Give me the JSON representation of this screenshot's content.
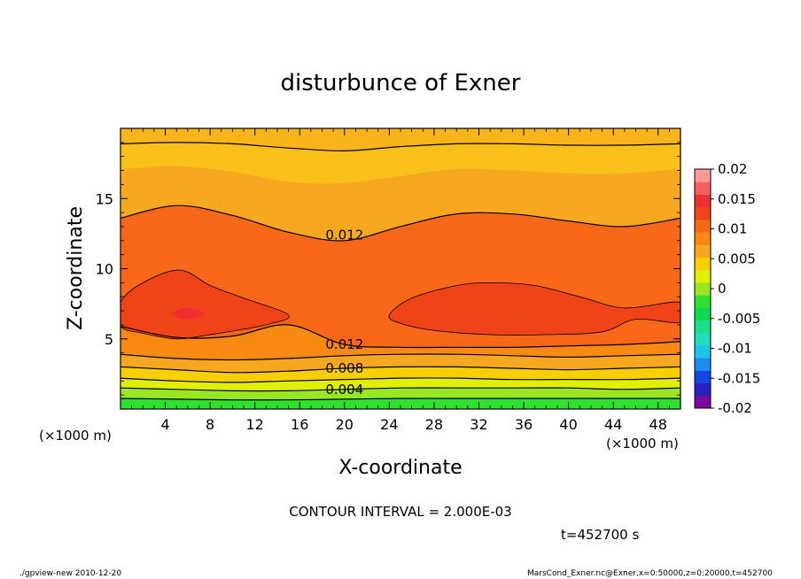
{
  "chart_data": {
    "type": "contour",
    "title": "disturbunce of Exner",
    "xlabel": "X-coordinate",
    "ylabel": "Z-coordinate",
    "x_unit": "(×1000 m)",
    "y_unit": "(×1000 m)",
    "xlim": [
      0,
      50
    ],
    "ylim": [
      0,
      20
    ],
    "x_ticks": [
      4,
      8,
      12,
      16,
      20,
      24,
      28,
      32,
      36,
      40,
      44,
      48
    ],
    "y_ticks": [
      5,
      10,
      15
    ],
    "contour_interval_text": "CONTOUR INTERVAL = 2.000E-03",
    "time_text": "t=452700 s",
    "colorbar": {
      "range": [
        -0.02,
        0.02
      ],
      "tick_labels": [
        "0.02",
        "0.015",
        "0.01",
        "0.005",
        "0",
        "-0.005",
        "-0.01",
        "-0.015",
        "-0.02"
      ],
      "colors": [
        "#7a0a9a",
        "#2a20c0",
        "#1446e6",
        "#1e8cf0",
        "#1ec4ea",
        "#22dcc0",
        "#18e08a",
        "#10d850",
        "#30e030",
        "#9ae620",
        "#e0f000",
        "#f8d000",
        "#f8a820",
        "#f88a14",
        "#f86818",
        "#f04418",
        "#f03030",
        "#f86060",
        "#ff9898"
      ]
    },
    "contour_labels": [
      {
        "text": "0.012",
        "x": 20,
        "z": 12.4
      },
      {
        "text": "0.012",
        "x": 20,
        "z": 4.6
      },
      {
        "text": "0.008",
        "x": 20,
        "z": 2.9
      },
      {
        "text": "0.004",
        "x": 20,
        "z": 1.4
      }
    ],
    "bands": [
      {
        "label": "0.000–0.002",
        "color": "#30e030",
        "upper_z": [
          0.8,
          0.75,
          0.7,
          0.7,
          0.75,
          0.8,
          0.8,
          0.8,
          0.8,
          0.8,
          0.8
        ]
      },
      {
        "label": "0.002–0.004",
        "color": "#9ae620",
        "upper_z": [
          1.5,
          1.4,
          1.3,
          1.3,
          1.4,
          1.5,
          1.5,
          1.5,
          1.5,
          1.4,
          1.5
        ]
      },
      {
        "label": "0.004–0.006",
        "color": "#e0f000",
        "upper_z": [
          2.2,
          2.0,
          1.9,
          2.0,
          2.1,
          2.2,
          2.2,
          2.1,
          2.1,
          2.1,
          2.2
        ]
      },
      {
        "label": "0.006–0.008",
        "color": "#f8d000",
        "upper_z": [
          3.0,
          2.8,
          2.6,
          2.7,
          2.9,
          3.0,
          3.0,
          2.9,
          2.8,
          2.9,
          3.0
        ]
      },
      {
        "label": "0.008–0.010",
        "color": "#f8a820",
        "upper_z": [
          3.9,
          3.6,
          3.5,
          3.6,
          3.8,
          3.9,
          3.9,
          3.8,
          3.7,
          3.8,
          3.9
        ]
      },
      {
        "label": "0.010–0.012",
        "color": "#f88a14",
        "upper_z": [
          5.9,
          5.1,
          5.2,
          6.0,
          4.6,
          4.4,
          4.4,
          4.4,
          4.5,
          4.6,
          4.8
        ]
      },
      {
        "label": "0.012–0.014",
        "color": "#f86818",
        "upper_z": [
          13.6,
          14.5,
          13.8,
          12.6,
          12.0,
          13.0,
          13.9,
          13.9,
          13.4,
          13.0,
          13.6
        ]
      },
      {
        "label": "0.014–0.016",
        "color": "#f8a820",
        "upper_z": [
          17.1,
          17.3,
          16.9,
          16.2,
          16.1,
          16.6,
          17.1,
          17.0,
          16.8,
          16.8,
          17.1
        ]
      },
      {
        "label": "0.016–0.018",
        "color": "#f8c018",
        "upper_z": [
          18.9,
          19.0,
          18.9,
          18.6,
          18.4,
          18.7,
          18.9,
          18.9,
          18.8,
          18.8,
          18.9
        ]
      },
      {
        "label": "top",
        "color": "#f8b418",
        "upper_z": [
          20,
          20,
          20,
          20,
          20,
          20,
          20,
          20,
          20,
          20,
          20
        ]
      }
    ],
    "band_x": [
      0,
      5,
      10,
      15,
      20,
      25,
      30,
      35,
      40,
      45,
      50
    ],
    "blobs": [
      {
        "label": ">0.014",
        "color": "#f04418",
        "points": [
          [
            0,
            7.6
          ],
          [
            2,
            9.0
          ],
          [
            5.3,
            9.9
          ],
          [
            8,
            8.8
          ],
          [
            11,
            7.9
          ],
          [
            15,
            6.7
          ],
          [
            13,
            6.0
          ],
          [
            8,
            5.3
          ],
          [
            5,
            5.0
          ],
          [
            2,
            5.4
          ],
          [
            0,
            5.9
          ]
        ]
      },
      {
        "label": ">0.014",
        "color": "#f04418",
        "points": [
          [
            24,
            6.7
          ],
          [
            26,
            7.9
          ],
          [
            30,
            8.8
          ],
          [
            33,
            9.0
          ],
          [
            37,
            8.8
          ],
          [
            41,
            8.0
          ],
          [
            45,
            7.2
          ],
          [
            50,
            7.6
          ],
          [
            50,
            6.2
          ],
          [
            46,
            6.4
          ],
          [
            43,
            5.5
          ],
          [
            38,
            5.3
          ],
          [
            33,
            5.3
          ],
          [
            28,
            5.6
          ],
          [
            25,
            6.1
          ]
        ]
      },
      {
        "label": ">0.016",
        "color": "#f03030",
        "points": [
          [
            4.5,
            6.8
          ],
          [
            6,
            7.2
          ],
          [
            7.5,
            6.8
          ],
          [
            6,
            6.4
          ]
        ]
      }
    ],
    "black_contours": [
      {
        "z": [
          0.75,
          0.7,
          0.65,
          0.65,
          0.7,
          0.75,
          0.75,
          0.75,
          0.75,
          0.75,
          0.75
        ]
      },
      {
        "z": [
          1.5,
          1.4,
          1.3,
          1.3,
          1.4,
          1.5,
          1.5,
          1.5,
          1.5,
          1.4,
          1.5
        ]
      },
      {
        "z": [
          2.2,
          2.0,
          1.9,
          2.0,
          2.1,
          2.2,
          2.2,
          2.1,
          2.1,
          2.1,
          2.2
        ]
      },
      {
        "z": [
          3.0,
          2.8,
          2.6,
          2.7,
          2.9,
          3.0,
          3.0,
          2.9,
          2.8,
          2.9,
          3.0
        ]
      },
      {
        "z": [
          3.9,
          3.6,
          3.5,
          3.6,
          3.8,
          3.9,
          3.9,
          3.8,
          3.7,
          3.8,
          3.9
        ]
      },
      {
        "z": [
          13.6,
          14.5,
          13.8,
          12.6,
          12.0,
          13.0,
          13.9,
          13.9,
          13.4,
          13.0,
          13.6
        ]
      },
      {
        "z": [
          18.9,
          19.0,
          18.9,
          18.6,
          18.4,
          18.7,
          18.9,
          18.9,
          18.8,
          18.8,
          18.9
        ]
      }
    ]
  },
  "footer": {
    "left": "./gpview-new   2010-12-20",
    "right": "MarsCond_Exner.nc@Exner,x=0:50000,z=0:20000,t=452700"
  }
}
